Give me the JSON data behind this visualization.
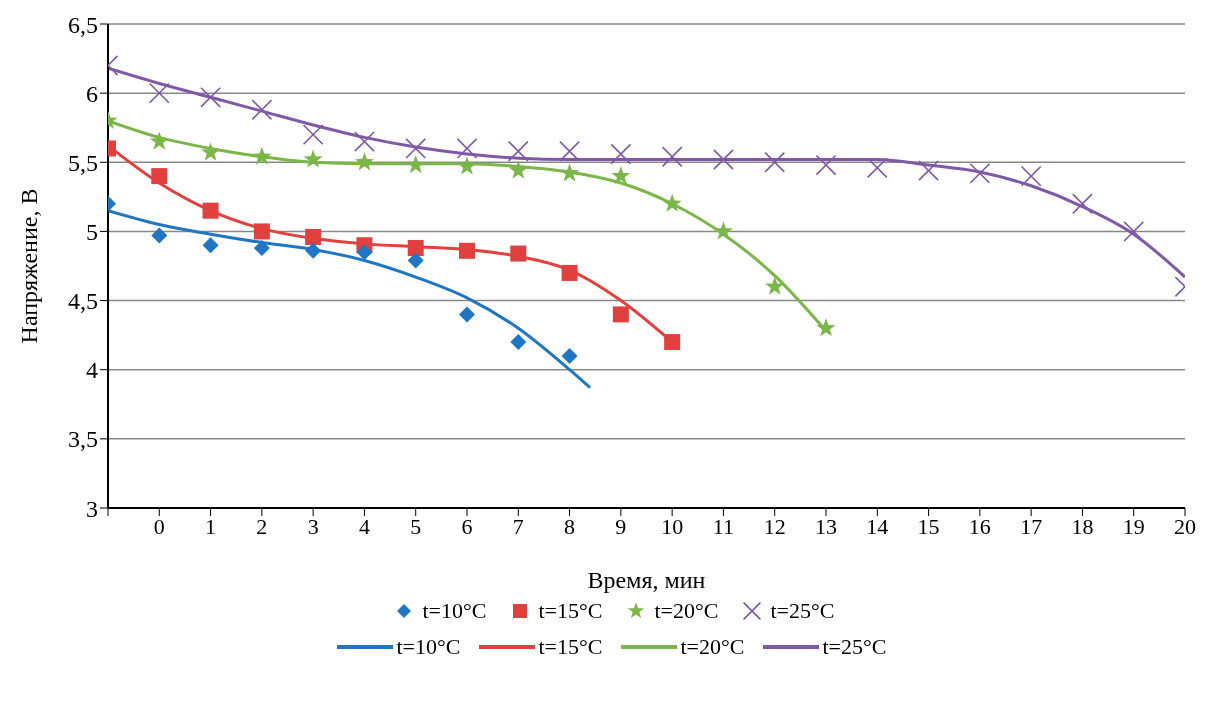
{
  "chart_data": {
    "type": "scatter",
    "xlabel": "Время, мин",
    "ylabel": "Напряжение, В",
    "xlim": [
      -1,
      20
    ],
    "xticks": [
      {
        "value": -1,
        "label": null
      },
      0,
      1,
      2,
      3,
      4,
      5,
      6,
      7,
      8,
      9,
      10,
      11,
      12,
      13,
      14,
      15,
      16,
      17,
      18,
      19,
      20
    ],
    "ylim": [
      3,
      6.5
    ],
    "yticks": [
      3,
      {
        "value": 3.5,
        "label": "3,5"
      },
      4,
      {
        "value": 4.5,
        "label": "4,5"
      },
      5,
      {
        "value": 5.5,
        "label": "5,5"
      },
      6,
      {
        "value": 6.5,
        "label": "6,5"
      }
    ],
    "grid": "y",
    "legend": "bottom",
    "series": [
      {
        "name": "t=10°C",
        "marker": "diamond",
        "color": "#1f77c4",
        "x": [
          -1,
          0,
          1,
          2,
          3,
          4,
          5,
          6,
          7,
          8
        ],
        "values": [
          5.2,
          4.97,
          4.9,
          4.88,
          4.86,
          4.85,
          4.79,
          4.4,
          4.2,
          4.1
        ]
      },
      {
        "name": "t=15°C",
        "marker": "square",
        "color": "#e0413f",
        "x": [
          -1,
          0,
          1,
          2,
          3,
          4,
          5,
          6,
          7,
          8,
          9,
          10
        ],
        "values": [
          5.6,
          5.4,
          5.15,
          5.0,
          4.96,
          4.9,
          4.88,
          4.86,
          4.84,
          4.7,
          4.4,
          4.2
        ]
      },
      {
        "name": "t=20°C",
        "marker": "star",
        "color": "#7ab648",
        "x": [
          -1,
          0,
          1,
          2,
          3,
          4,
          5,
          6,
          7,
          8,
          9,
          10,
          11,
          12,
          13
        ],
        "values": [
          5.8,
          5.65,
          5.57,
          5.54,
          5.52,
          5.5,
          5.48,
          5.47,
          5.44,
          5.42,
          5.4,
          5.2,
          5.0,
          4.6,
          4.3
        ]
      },
      {
        "name": "t=25°C",
        "marker": "cross",
        "color": "#8058a8",
        "x": [
          -1,
          0,
          1,
          2,
          3,
          4,
          5,
          6,
          7,
          8,
          9,
          10,
          11,
          12,
          13,
          14,
          15,
          16,
          17,
          18,
          19,
          20
        ],
        "values": [
          6.2,
          6.0,
          5.97,
          5.88,
          5.7,
          5.65,
          5.6,
          5.6,
          5.58,
          5.58,
          5.56,
          5.54,
          5.52,
          5.5,
          5.48,
          5.46,
          5.44,
          5.42,
          5.4,
          5.2,
          5.0,
          4.6
        ]
      },
      {
        "name": "t=10°C",
        "type": "line",
        "marker": "none",
        "color": "#1f77c4",
        "x": [
          -1,
          0,
          1,
          2,
          3,
          4,
          5,
          6,
          7,
          8,
          8.4
        ],
        "values": [
          5.15,
          5.05,
          4.98,
          4.92,
          4.87,
          4.79,
          4.67,
          4.52,
          4.3,
          4.0,
          3.87
        ]
      },
      {
        "name": "t=15°C",
        "type": "line",
        "marker": "none",
        "color": "#e0413f",
        "x": [
          -1,
          0,
          1,
          2,
          3,
          4,
          5,
          6,
          7,
          8,
          9,
          10
        ],
        "values": [
          5.62,
          5.35,
          5.15,
          5.02,
          4.95,
          4.91,
          4.89,
          4.87,
          4.82,
          4.72,
          4.5,
          4.2
        ]
      },
      {
        "name": "t=20°C",
        "type": "line",
        "marker": "none",
        "color": "#7ab648",
        "x": [
          -1,
          0,
          1,
          2,
          3,
          4,
          5,
          6,
          7,
          8,
          9,
          10,
          11,
          12,
          13
        ],
        "values": [
          5.8,
          5.68,
          5.6,
          5.54,
          5.5,
          5.49,
          5.49,
          5.49,
          5.47,
          5.43,
          5.35,
          5.2,
          4.98,
          4.68,
          4.28
        ]
      },
      {
        "name": "t=25°C",
        "type": "line",
        "marker": "none",
        "color": "#8058a8",
        "x": [
          -1,
          0,
          1,
          2,
          3,
          4,
          5,
          6,
          7,
          8,
          9,
          10,
          11,
          12,
          13,
          14,
          15,
          16,
          17,
          18,
          19,
          20
        ],
        "values": [
          6.18,
          6.07,
          5.97,
          5.87,
          5.77,
          5.68,
          5.61,
          5.56,
          5.53,
          5.52,
          5.52,
          5.52,
          5.52,
          5.52,
          5.52,
          5.52,
          5.48,
          5.43,
          5.33,
          5.18,
          4.98,
          4.67
        ]
      }
    ]
  }
}
